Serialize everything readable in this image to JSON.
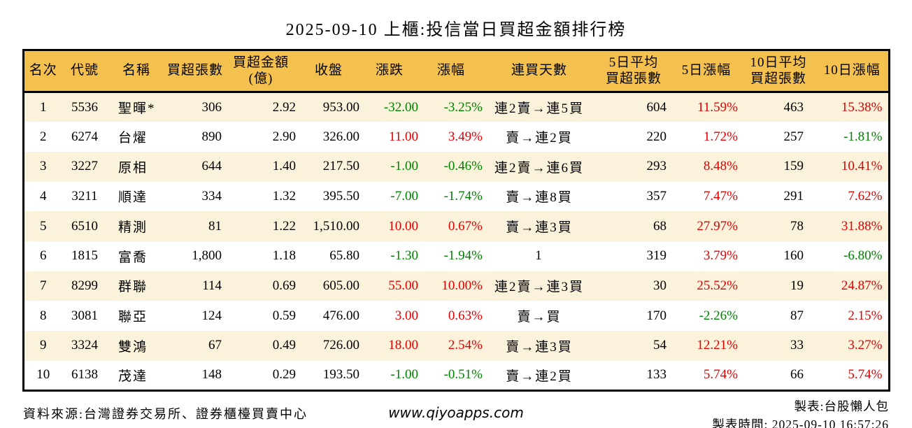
{
  "title": "2025-09-10 上櫃:投信當日買超金額排行榜",
  "chart_data": {
    "type": "table",
    "title": "2025-09-10 上櫃:投信當日買超金額排行榜",
    "columns": [
      "名次",
      "代號",
      "名稱",
      "買超張數",
      "買超金額(億)",
      "收盤",
      "漲跌",
      "漲幅",
      "連買天數",
      "5日平均買超張數",
      "5日漲幅",
      "10日平均買超張數",
      "10日漲幅"
    ],
    "headers_display": [
      "名次",
      "代號",
      "名稱",
      "買超張數",
      "買超金額\n(億)",
      "收盤",
      "漲跌",
      "漲幅",
      "連買天數",
      "5日平均\n買超張數",
      "5日漲幅",
      "10日平均\n買超張數",
      "10日漲幅"
    ],
    "column_keys": [
      "rank",
      "code",
      "stock-name",
      "net-buy-volume",
      "net-buy-amount-100m",
      "close-price",
      "price-change",
      "change-percent",
      "consecutive-buy-days",
      "avg5d-net-buy-volume",
      "gain-5d",
      "avg10d-net-buy-volume",
      "gain-10d"
    ],
    "colored_column_indexes": [
      6,
      7,
      10,
      12
    ],
    "color_rule": "positive=red(up), negative=green(down)",
    "rows": [
      [
        "1",
        "5536",
        "聖暉*",
        "306",
        "2.92",
        "953.00",
        "-32.00",
        "-3.25%",
        "連2賣→連5買",
        "604",
        "11.59%",
        "463",
        "15.38%"
      ],
      [
        "2",
        "6274",
        "台燿",
        "890",
        "2.90",
        "326.00",
        "11.00",
        "3.49%",
        "賣→連2買",
        "220",
        "1.72%",
        "257",
        "-1.81%"
      ],
      [
        "3",
        "3227",
        "原相",
        "644",
        "1.40",
        "217.50",
        "-1.00",
        "-0.46%",
        "連2賣→連6買",
        "293",
        "8.48%",
        "159",
        "10.41%"
      ],
      [
        "4",
        "3211",
        "順達",
        "334",
        "1.32",
        "395.50",
        "-7.00",
        "-1.74%",
        "賣→連8買",
        "357",
        "7.47%",
        "291",
        "7.62%"
      ],
      [
        "5",
        "6510",
        "精測",
        "81",
        "1.22",
        "1,510.00",
        "10.00",
        "0.67%",
        "賣→連3買",
        "68",
        "27.97%",
        "78",
        "31.88%"
      ],
      [
        "6",
        "1815",
        "富喬",
        "1,800",
        "1.18",
        "65.80",
        "-1.30",
        "-1.94%",
        "1",
        "319",
        "3.79%",
        "160",
        "-6.80%"
      ],
      [
        "7",
        "8299",
        "群聯",
        "114",
        "0.69",
        "605.00",
        "55.00",
        "10.00%",
        "連2賣→連3買",
        "30",
        "25.52%",
        "19",
        "24.87%"
      ],
      [
        "8",
        "3081",
        "聯亞",
        "124",
        "0.59",
        "476.00",
        "3.00",
        "0.63%",
        "賣→買",
        "170",
        "-2.26%",
        "87",
        "2.15%"
      ],
      [
        "9",
        "3324",
        "雙鴻",
        "67",
        "0.49",
        "726.00",
        "18.00",
        "2.54%",
        "賣→連3買",
        "54",
        "12.21%",
        "33",
        "3.27%"
      ],
      [
        "10",
        "6138",
        "茂達",
        "148",
        "0.29",
        "193.50",
        "-1.00",
        "-0.51%",
        "賣→連2買",
        "133",
        "5.74%",
        "66",
        "5.74%"
      ]
    ]
  },
  "footer": {
    "source": "資料來源:台灣證券交易所、證券櫃檯買賣中心",
    "website": "www.qiyoapps.com",
    "maker": "製表:台股懶人包",
    "made_time": "製表時間: 2025-09-10 16:57:26"
  },
  "colors": {
    "up_red": "#e00000",
    "down_green": "#008000",
    "header_bg": "#f5c14e",
    "row_alt_bg": "#fbf2dc",
    "border": "#000000"
  }
}
